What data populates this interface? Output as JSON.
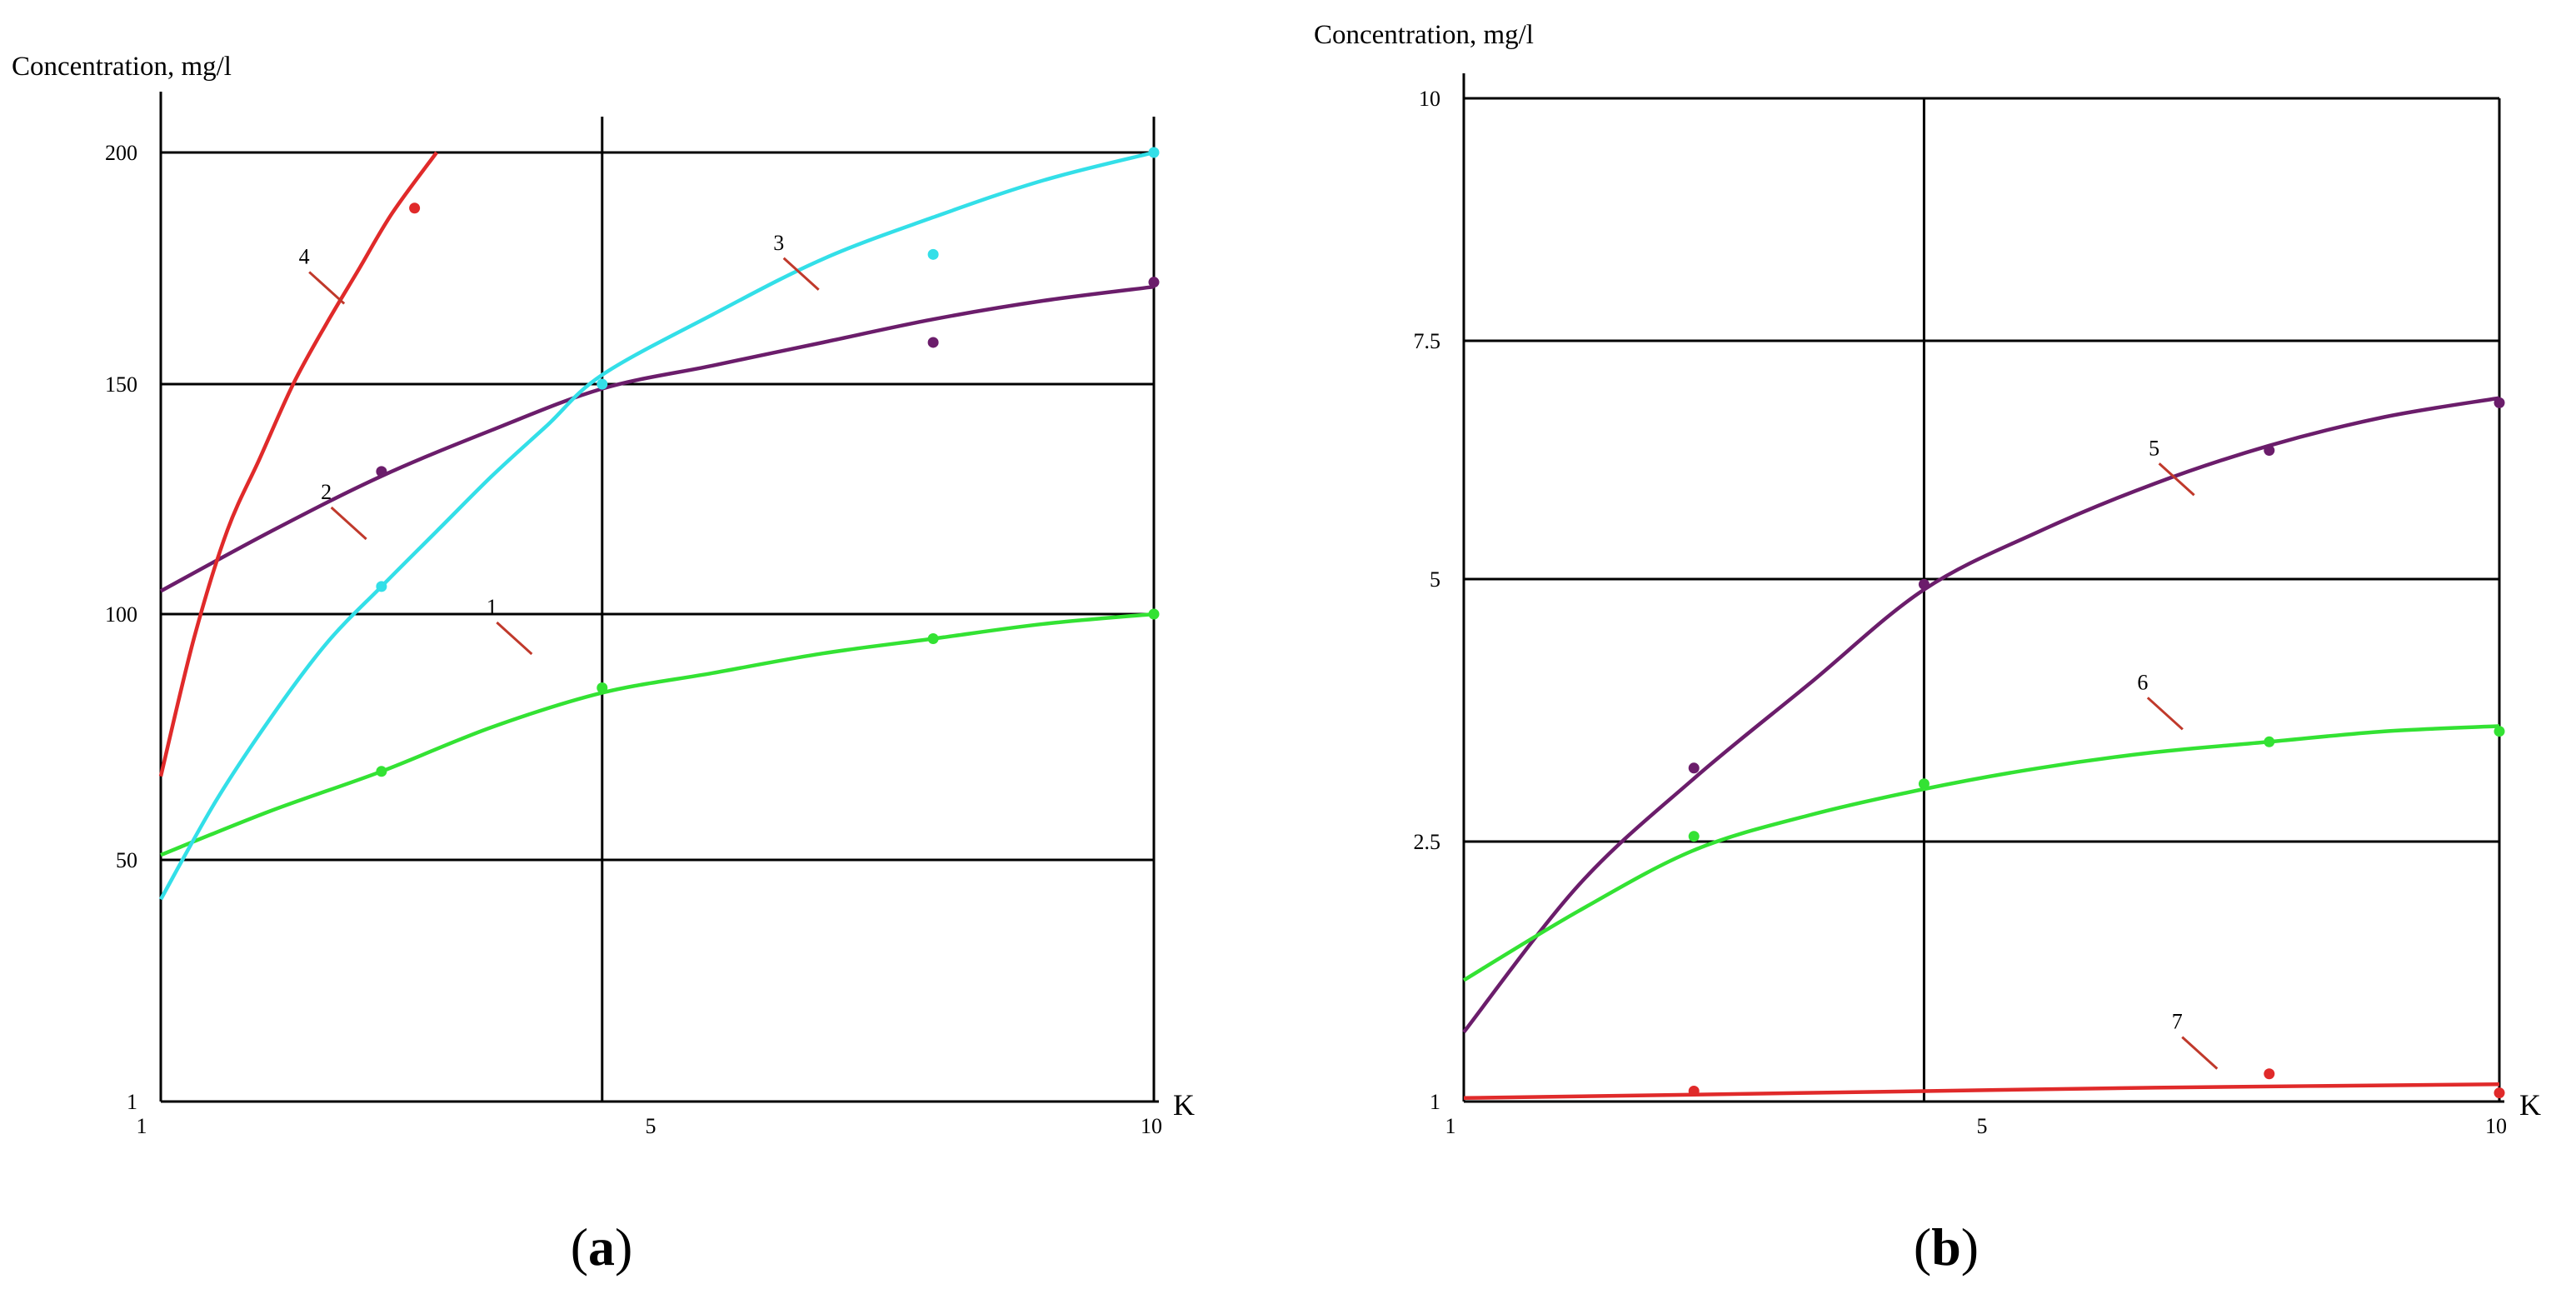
{
  "figure": {
    "panels": [
      "a",
      "b"
    ]
  },
  "chart_data": [
    {
      "type": "line",
      "panel": "a",
      "panel_label": "a",
      "ylabel": "Concentration, mg/l",
      "xlabel": "K",
      "x_ticks": [
        {
          "value": 1,
          "label": "1"
        },
        {
          "value": 5,
          "label": "5"
        },
        {
          "value": 10,
          "label": "10"
        }
      ],
      "y_ticks": [
        {
          "value": 1,
          "label": "1"
        },
        {
          "value": 50,
          "label": "50"
        },
        {
          "value": 100,
          "label": "100"
        },
        {
          "value": 150,
          "label": "150"
        },
        {
          "value": 200,
          "label": "200"
        }
      ],
      "grid": true,
      "series": [
        {
          "name": "1",
          "label": "1",
          "color": "#33e233",
          "curve": [
            [
              1,
              51
            ],
            [
              2,
              60
            ],
            [
              3,
              68
            ],
            [
              4,
              77
            ],
            [
              5,
              84
            ],
            [
              6,
              88
            ],
            [
              7,
              92
            ],
            [
              8,
              95
            ],
            [
              9,
              98
            ],
            [
              10,
              100
            ]
          ],
          "points": [
            [
              3,
              68
            ],
            [
              5,
              85
            ],
            [
              8,
              95
            ],
            [
              10,
              100
            ]
          ],
          "label_at": [
            4,
            100
          ]
        },
        {
          "name": "2",
          "label": "2",
          "color": "#6b1d6b",
          "curve": [
            [
              1,
              105
            ],
            [
              2,
              118
            ],
            [
              3,
              130
            ],
            [
              4,
              140
            ],
            [
              5,
              149
            ],
            [
              6,
              154
            ],
            [
              7,
              159
            ],
            [
              8,
              164
            ],
            [
              9,
              168
            ],
            [
              10,
              171
            ]
          ],
          "points": [
            [
              3,
              131
            ],
            [
              8,
              159
            ],
            [
              10,
              172
            ]
          ],
          "label_at": [
            2.5,
            125
          ]
        },
        {
          "name": "3",
          "label": "3",
          "color": "#33dfe8",
          "curve": [
            [
              1,
              42
            ],
            [
              1.5,
              62
            ],
            [
              2,
              79
            ],
            [
              2.5,
              94
            ],
            [
              3,
              106
            ],
            [
              3.5,
              118
            ],
            [
              4,
              130
            ],
            [
              4.5,
              141
            ],
            [
              5,
              152
            ],
            [
              6,
              165
            ],
            [
              7,
              177
            ],
            [
              8,
              186
            ],
            [
              9,
              194
            ],
            [
              10,
              200
            ]
          ],
          "points": [
            [
              3,
              106
            ],
            [
              5,
              150
            ],
            [
              8,
              178
            ],
            [
              10,
              200
            ]
          ],
          "label_at": [
            6.6,
            179
          ]
        },
        {
          "name": "4",
          "label": "4",
          "color": "#e02a2a",
          "curve": [
            [
              1,
              67
            ],
            [
              1.3,
              95
            ],
            [
              1.6,
              118
            ],
            [
              1.9,
              134
            ],
            [
              2.2,
              150
            ],
            [
              2.5,
              163
            ],
            [
              2.8,
              175
            ],
            [
              3.1,
              187
            ],
            [
              3.5,
              200
            ]
          ],
          "points": [
            [
              3.3,
              188
            ]
          ],
          "label_at": [
            2.3,
            176
          ]
        }
      ]
    },
    {
      "type": "line",
      "panel": "b",
      "panel_label": "b",
      "ylabel": "Concentration, mg/l",
      "xlabel": "K",
      "x_ticks": [
        {
          "value": 1,
          "label": "1"
        },
        {
          "value": 5,
          "label": "5"
        },
        {
          "value": 10,
          "label": "10"
        }
      ],
      "y_ticks": [
        {
          "value": 1,
          "label": "1"
        },
        {
          "value": 2.5,
          "label": "2.5"
        },
        {
          "value": 5,
          "label": "5"
        },
        {
          "value": 7.5,
          "label": "7.5"
        },
        {
          "value": 10,
          "label": "10"
        }
      ],
      "grid": true,
      "series": [
        {
          "name": "5",
          "label": "5",
          "color": "#6b1d6b",
          "curve": [
            [
              1,
              1.4
            ],
            [
              2,
              2.25
            ],
            [
              3,
              3.1
            ],
            [
              4,
              4.0
            ],
            [
              5,
              4.9
            ],
            [
              6,
              5.5
            ],
            [
              7,
              6.0
            ],
            [
              8,
              6.4
            ],
            [
              9,
              6.7
            ],
            [
              10,
              6.9
            ]
          ],
          "points": [
            [
              3,
              3.2
            ],
            [
              5,
              4.95
            ],
            [
              8,
              6.35
            ],
            [
              10,
              6.85
            ]
          ],
          "label_at": [
            7,
            6.3
          ]
        },
        {
          "name": "6",
          "label": "6",
          "color": "#33e233",
          "curve": [
            [
              1,
              1.7
            ],
            [
              2,
              2.1
            ],
            [
              3,
              2.45
            ],
            [
              4,
              2.75
            ],
            [
              5,
              3.0
            ],
            [
              6,
              3.2
            ],
            [
              7,
              3.35
            ],
            [
              8,
              3.45
            ],
            [
              9,
              3.55
            ],
            [
              10,
              3.6
            ]
          ],
          "points": [
            [
              3,
              2.55
            ],
            [
              5,
              3.05
            ],
            [
              8,
              3.45
            ],
            [
              10,
              3.55
            ]
          ],
          "label_at": [
            6.9,
            3.95
          ]
        },
        {
          "name": "7",
          "label": "7",
          "color": "#e02a2a",
          "curve": [
            [
              1,
              1.02
            ],
            [
              3,
              1.04
            ],
            [
              5,
              1.06
            ],
            [
              7,
              1.08
            ],
            [
              10,
              1.1
            ]
          ],
          "points": [
            [
              3,
              1.06
            ],
            [
              8,
              1.16
            ],
            [
              10,
              1.05
            ]
          ],
          "label_at": [
            7.2,
            1.42
          ]
        }
      ]
    }
  ]
}
